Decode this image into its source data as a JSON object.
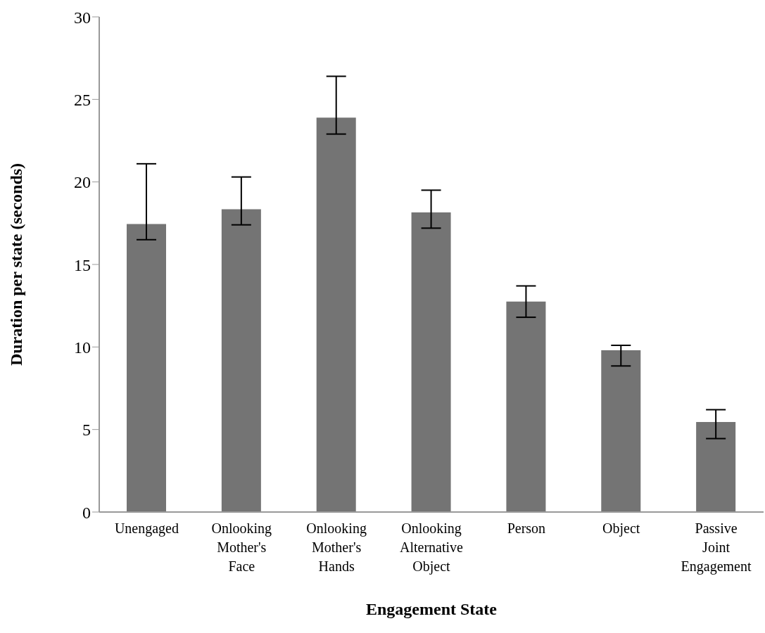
{
  "chart_data": {
    "type": "bar",
    "xlabel": "Engagement State",
    "ylabel": "Duration per state (seconds)",
    "categories": [
      "Unengaged",
      "Onlooking Mother's Face",
      "Onlooking Mother's Hands",
      "Onlooking Alternative Object",
      "Person",
      "Object",
      "Passive Joint Engagement"
    ],
    "values": [
      17.45,
      18.35,
      23.9,
      18.15,
      12.75,
      9.8,
      5.45
    ],
    "errors": [
      [
        16.5,
        21.1
      ],
      [
        17.4,
        20.3
      ],
      [
        22.9,
        26.4
      ],
      [
        17.2,
        19.5
      ],
      [
        11.8,
        13.7
      ],
      [
        8.85,
        10.1
      ],
      [
        4.45,
        6.2
      ]
    ],
    "color": "#747474",
    "ylim": [
      0,
      30
    ],
    "yticks": [
      0,
      5,
      10,
      15,
      20,
      25,
      30
    ],
    "grid": false,
    "legend": false
  }
}
